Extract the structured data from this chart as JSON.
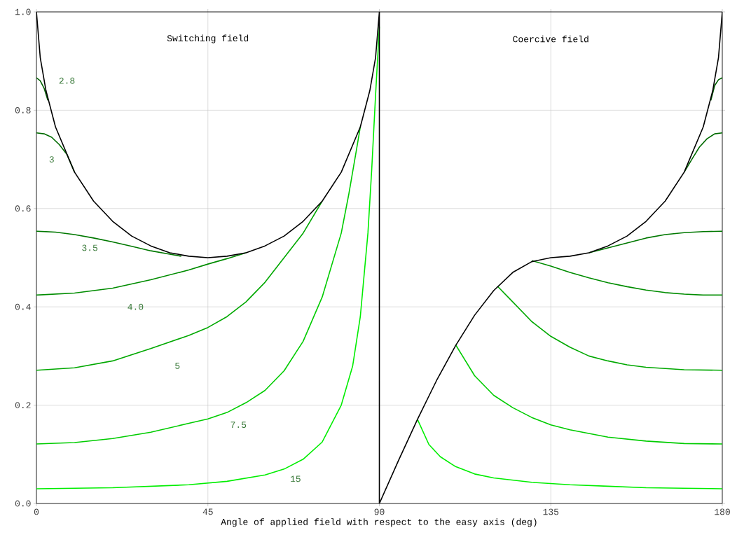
{
  "chart_data": {
    "type": "line",
    "xlabel": "Angle of applied field with respect to the easy axis (deg)",
    "xlim": [
      0,
      180
    ],
    "xticks": [
      0,
      45,
      90,
      135,
      180
    ],
    "ylim": [
      0,
      1
    ],
    "yticks": [
      {
        "value": 0,
        "label": "0.0"
      },
      {
        "value": 0.2,
        "label": "0.2"
      },
      {
        "value": 0.4,
        "label": "0.4"
      },
      {
        "value": 0.6,
        "label": "0.6"
      },
      {
        "value": 0.8,
        "label": "0.8"
      },
      {
        "value": 1,
        "label": "1.0"
      }
    ],
    "grid": true,
    "legend": false,
    "marker": "none",
    "line_style": "solid",
    "series": [
      {
        "name": "2.8",
        "color": "#006000",
        "x": [
          0,
          1,
          2,
          3,
          90,
          177,
          178,
          179,
          180
        ],
        "values": [
          0.866,
          0.86,
          0.845,
          0.82,
          null,
          0.82,
          0.85,
          0.862,
          0.866
        ]
      },
      {
        "name": "3",
        "color": "#006a00",
        "x": [
          0,
          2,
          4,
          6,
          8,
          10,
          90,
          170,
          172,
          174,
          176,
          178,
          180
        ],
        "values": [
          0.754,
          0.752,
          0.745,
          0.73,
          0.71,
          0.674,
          null,
          0.674,
          0.7,
          0.725,
          0.742,
          0.752,
          0.754
        ]
      },
      {
        "name": "3.5",
        "color": "#007800",
        "x": [
          0,
          5,
          10,
          15,
          20,
          25,
          30,
          35,
          38,
          90,
          145,
          150,
          155,
          160,
          165,
          170,
          175,
          180
        ],
        "values": [
          0.554,
          0.552,
          0.547,
          0.54,
          0.532,
          0.523,
          0.514,
          0.507,
          0.503,
          null,
          0.51,
          0.52,
          0.53,
          0.54,
          0.547,
          0.551,
          0.553,
          0.554
        ]
      },
      {
        "name": "4.0",
        "color": "#008c00",
        "x": [
          0,
          10,
          20,
          30,
          40,
          45,
          50,
          55,
          90,
          130,
          135,
          140,
          145,
          150,
          155,
          160,
          165,
          170,
          175,
          180
        ],
        "values": [
          0.424,
          0.428,
          0.438,
          0.455,
          0.475,
          0.487,
          0.498,
          0.51,
          null,
          0.494,
          0.483,
          0.47,
          0.459,
          0.449,
          0.441,
          0.434,
          0.429,
          0.426,
          0.424,
          0.424
        ]
      },
      {
        "name": "5",
        "color": "#00a800",
        "x": [
          0,
          10,
          20,
          30,
          40,
          45,
          50,
          55,
          60,
          65,
          70,
          75,
          90,
          121,
          125,
          130,
          135,
          140,
          145,
          150,
          155,
          160,
          170,
          180
        ],
        "values": [
          0.271,
          0.276,
          0.29,
          0.315,
          0.342,
          0.358,
          0.38,
          0.41,
          0.45,
          0.5,
          0.55,
          0.615,
          null,
          0.442,
          0.41,
          0.37,
          0.34,
          0.318,
          0.3,
          0.29,
          0.282,
          0.277,
          0.272,
          0.271
        ]
      },
      {
        "name": "7.5",
        "color": "#00cc00",
        "x": [
          0,
          10,
          20,
          30,
          40,
          45,
          50,
          55,
          60,
          65,
          70,
          75,
          80,
          82,
          84,
          85,
          90,
          110,
          115,
          120,
          125,
          130,
          135,
          140,
          150,
          160,
          170,
          180
        ],
        "values": [
          0.121,
          0.124,
          0.132,
          0.145,
          0.163,
          0.172,
          0.185,
          0.205,
          0.23,
          0.27,
          0.33,
          0.42,
          0.55,
          0.63,
          0.72,
          0.766,
          null,
          0.323,
          0.26,
          0.22,
          0.195,
          0.175,
          0.16,
          0.15,
          0.135,
          0.127,
          0.122,
          0.121
        ]
      },
      {
        "name": "15",
        "color": "#00ee00",
        "x": [
          0,
          20,
          40,
          50,
          60,
          65,
          70,
          75,
          80,
          83,
          85,
          87,
          88,
          89,
          90,
          95,
          100,
          103,
          106,
          110,
          115,
          120,
          130,
          140,
          150,
          160,
          170,
          180
        ],
        "values": [
          0.03,
          0.032,
          0.038,
          0.045,
          0.058,
          0.07,
          0.09,
          0.125,
          0.2,
          0.28,
          0.38,
          0.55,
          0.68,
          0.83,
          0.97,
          null,
          0.171,
          0.12,
          0.095,
          0.075,
          0.06,
          0.052,
          0.043,
          0.038,
          0.035,
          0.032,
          0.031,
          0.03
        ]
      },
      {
        "color": "#000000",
        "x": [
          0,
          1,
          2.5,
          5,
          10,
          15,
          20,
          25,
          30,
          35,
          40,
          45,
          50,
          55,
          60,
          65,
          70,
          75,
          80,
          85,
          87.5,
          89,
          90,
          90,
          95,
          100,
          105,
          110,
          115,
          120,
          125,
          130,
          135,
          140,
          145,
          150,
          155,
          160,
          165,
          170,
          175,
          177.5,
          179,
          180
        ],
        "values": [
          1,
          0.907,
          0.84,
          0.766,
          0.674,
          0.615,
          0.574,
          0.544,
          0.524,
          0.51,
          0.503,
          0.5,
          0.503,
          0.51,
          0.524,
          0.544,
          0.574,
          0.615,
          0.674,
          0.766,
          0.84,
          0.907,
          1,
          0,
          0.087,
          0.171,
          0.25,
          0.321,
          0.383,
          0.433,
          0.47,
          0.492,
          0.5,
          0.503,
          0.51,
          0.524,
          0.544,
          0.574,
          0.615,
          0.674,
          0.766,
          0.84,
          0.907,
          1
        ]
      }
    ],
    "annotations": [
      "Switching field",
      "Coercive field"
    ]
  }
}
